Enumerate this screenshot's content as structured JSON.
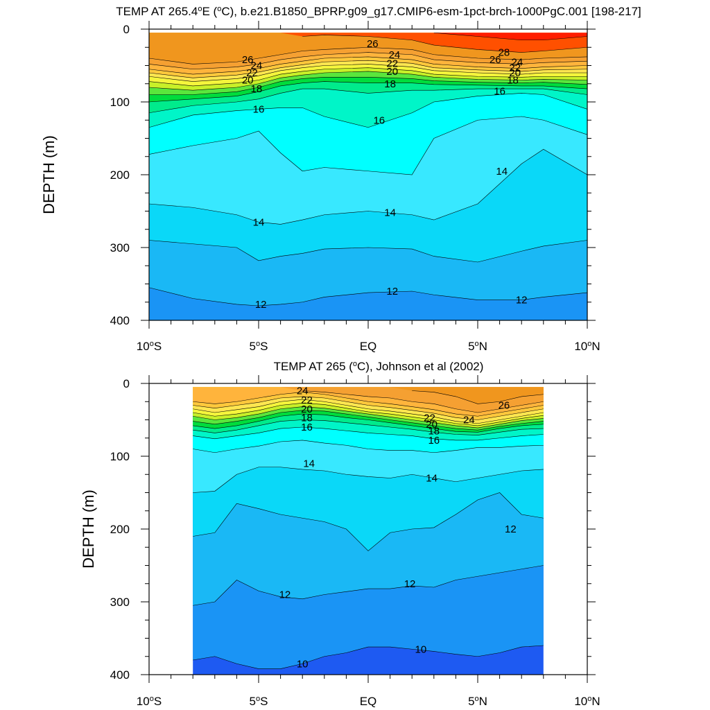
{
  "chart_data": [
    {
      "type": "contour",
      "title_pre": "TEMP AT 265.4",
      "title_sup": "o",
      "title_post": "E (",
      "title_sup2": "o",
      "title_post2": "C), b.e21.B1850_BPRP.g09_g17.CMIP6-esm-1pct-brch-1000PgC.001 [198-217]",
      "ylabel": "DEPTH (m)",
      "ylim": [
        0,
        400
      ],
      "xlim": [
        -10,
        10
      ],
      "xticks": [
        {
          "value": -10,
          "label": "10",
          "suffix": "S",
          "deg": true
        },
        {
          "value": -5,
          "label": "5",
          "suffix": "S",
          "deg": true
        },
        {
          "value": 0,
          "label": "EQ",
          "suffix": "",
          "deg": false
        },
        {
          "value": 5,
          "label": "5",
          "suffix": "N",
          "deg": true
        },
        {
          "value": 10,
          "label": "10",
          "suffix": "N",
          "deg": true
        }
      ],
      "yticks": [
        "0",
        "100",
        "200",
        "300",
        "400"
      ],
      "data_extent": [
        -10,
        10
      ],
      "isotherm_depths": {
        "x": [
          -10,
          -8,
          -6,
          -5,
          -4,
          -3,
          -2,
          0,
          2,
          3,
          5,
          7,
          8,
          10
        ],
        "levels": [
          {
            "t": 28,
            "d": [
              -1,
              -1,
              -1,
              -1,
              -1,
              -1,
              -1,
              -1,
              -1,
              5,
              10,
              15,
              15,
              10
            ]
          },
          {
            "t": 27,
            "d": [
              -1,
              -1,
              -1,
              -1,
              -1,
              10,
              8,
              10,
              15,
              22,
              28,
              32,
              30,
              25
            ]
          },
          {
            "t": 26,
            "d": [
              40,
              48,
              45,
              40,
              35,
              30,
              28,
              25,
              28,
              35,
              40,
              42,
              40,
              38
            ]
          },
          {
            "t": 25,
            "d": [
              48,
              55,
              52,
              48,
              42,
              38,
              35,
              32,
              35,
              42,
              46,
              48,
              46,
              44
            ]
          },
          {
            "t": 24,
            "d": [
              55,
              62,
              58,
              54,
              48,
              44,
              40,
              38,
              42,
              48,
              52,
              54,
              52,
              50
            ]
          },
          {
            "t": 23,
            "d": [
              60,
              67,
              63,
              59,
              53,
              49,
              45,
              43,
              47,
              53,
              56,
              58,
              56,
              55
            ]
          },
          {
            "t": 22,
            "d": [
              65,
              72,
              68,
              64,
              57,
              53,
              50,
              48,
              52,
              57,
              60,
              62,
              60,
              60
            ]
          },
          {
            "t": 21,
            "d": [
              72,
              78,
              74,
              70,
              62,
              58,
              55,
              53,
              57,
              62,
              65,
              66,
              65,
              65
            ]
          },
          {
            "t": 20,
            "d": [
              80,
              84,
              80,
              75,
              67,
              63,
              60,
              58,
              62,
              66,
              69,
              70,
              69,
              70
            ]
          },
          {
            "t": 19,
            "d": [
              90,
              90,
              86,
              80,
              72,
              68,
              66,
              66,
              68,
              71,
              73,
              74,
              73,
              76
            ]
          },
          {
            "t": 18,
            "d": [
              100,
              96,
              92,
              86,
              78,
              74,
              72,
              74,
              74,
              76,
              77,
              78,
              78,
              82
            ]
          },
          {
            "t": 17,
            "d": [
              115,
              105,
              100,
              96,
              88,
              82,
              82,
              88,
              84,
              84,
              82,
              82,
              82,
              90
            ]
          },
          {
            "t": 16,
            "d": [
              135,
              118,
              112,
              110,
              108,
              108,
              120,
              135,
              115,
              100,
              92,
              88,
              90,
              110
            ]
          },
          {
            "t": 15,
            "d": [
              172,
              160,
              150,
              140,
              170,
              195,
              190,
              195,
              200,
              150,
              125,
              120,
              125,
              145
            ]
          },
          {
            "t": 14,
            "d": [
              240,
              245,
              255,
              265,
              268,
              262,
              255,
              250,
              255,
              262,
              240,
              185,
              165,
              200
            ]
          },
          {
            "t": 13,
            "d": [
              290,
              295,
              300,
              318,
              312,
              308,
              302,
              300,
              302,
              312,
              320,
              305,
              298,
              290
            ]
          },
          {
            "t": 12,
            "d": [
              355,
              370,
              378,
              380,
              378,
              375,
              368,
              362,
              360,
              365,
              372,
              372,
              368,
              362
            ]
          }
        ]
      },
      "labels": [
        {
          "text": "26",
          "x": -5.5,
          "d": 42
        },
        {
          "text": "24",
          "x": -5.1,
          "d": 50
        },
        {
          "text": "22",
          "x": -5.3,
          "d": 60
        },
        {
          "text": "20",
          "x": -5.5,
          "d": 70
        },
        {
          "text": "18",
          "x": -5.1,
          "d": 82
        },
        {
          "text": "16",
          "x": -5.0,
          "d": 110
        },
        {
          "text": "26",
          "x": 0.2,
          "d": 20
        },
        {
          "text": "24",
          "x": 1.2,
          "d": 35
        },
        {
          "text": "22",
          "x": 1.1,
          "d": 47
        },
        {
          "text": "20",
          "x": 1.1,
          "d": 58
        },
        {
          "text": "18",
          "x": 1.0,
          "d": 75
        },
        {
          "text": "16",
          "x": 0.5,
          "d": 125
        },
        {
          "text": "28",
          "x": 6.2,
          "d": 32
        },
        {
          "text": "26",
          "x": 5.8,
          "d": 42
        },
        {
          "text": "24",
          "x": 6.8,
          "d": 45
        },
        {
          "text": "22",
          "x": 6.7,
          "d": 53
        },
        {
          "text": "20",
          "x": 6.7,
          "d": 60
        },
        {
          "text": "18",
          "x": 6.6,
          "d": 70
        },
        {
          "text": "16",
          "x": 6.0,
          "d": 85
        },
        {
          "text": "14",
          "x": 6.1,
          "d": 195
        },
        {
          "text": "14",
          "x": -5.0,
          "d": 265
        },
        {
          "text": "14",
          "x": 1.0,
          "d": 252
        },
        {
          "text": "12",
          "x": -4.9,
          "d": 378
        },
        {
          "text": "12",
          "x": 1.1,
          "d": 360
        },
        {
          "text": "12",
          "x": 7.0,
          "d": 372
        }
      ]
    },
    {
      "type": "contour",
      "title_pre": "TEMP AT 265 (",
      "title_sup": "o",
      "title_post": "C), Johnson et al (2002)",
      "title_sup2": "",
      "title_post2": "",
      "ylabel": "DEPTH (m)",
      "ylim": [
        0,
        400
      ],
      "xlim": [
        -10,
        10
      ],
      "xticks": [
        {
          "value": -10,
          "label": "10",
          "suffix": "S",
          "deg": true
        },
        {
          "value": -5,
          "label": "5",
          "suffix": "S",
          "deg": true
        },
        {
          "value": 0,
          "label": "EQ",
          "suffix": "",
          "deg": false
        },
        {
          "value": 5,
          "label": "5",
          "suffix": "N",
          "deg": true
        },
        {
          "value": 10,
          "label": "10",
          "suffix": "N",
          "deg": true
        }
      ],
      "yticks": [
        "0",
        "100",
        "200",
        "300",
        "400"
      ],
      "data_extent": [
        -8,
        8
      ],
      "isotherm_depths": {
        "x": [
          -8,
          -7,
          -6,
          -5,
          -4,
          -3,
          -2,
          -1,
          0,
          1,
          2,
          3,
          4,
          5,
          6,
          7,
          8
        ],
        "levels": [
          {
            "t": 26,
            "d": [
              -1,
              -1,
              -1,
              -1,
              -1,
              -1,
              -1,
              -1,
              -1,
              -1,
              10,
              12,
              18,
              28,
              25,
              18,
              15
            ]
          },
          {
            "t": 25,
            "d": [
              -1,
              -1,
              -1,
              -1,
              -1,
              10,
              12,
              15,
              18,
              20,
              25,
              28,
              35,
              40,
              35,
              30,
              25
            ]
          },
          {
            "t": 24,
            "d": [
              25,
              28,
              25,
              20,
              15,
              12,
              15,
              20,
              25,
              28,
              32,
              36,
              42,
              45,
              40,
              35,
              30
            ]
          },
          {
            "t": 23,
            "d": [
              30,
              34,
              30,
              26,
              20,
              18,
              20,
              25,
              30,
              33,
              37,
              41,
              47,
              50,
              45,
              40,
              35
            ]
          },
          {
            "t": 22,
            "d": [
              35,
              40,
              36,
              32,
              25,
              22,
              25,
              30,
              35,
              38,
              42,
              46,
              52,
              55,
              50,
              45,
              40
            ]
          },
          {
            "t": 21,
            "d": [
              40,
              45,
              42,
              37,
              30,
              27,
              29,
              34,
              39,
              42,
              46,
              50,
              55,
              58,
              53,
              48,
              44
            ]
          },
          {
            "t": 20,
            "d": [
              45,
              50,
              47,
              42,
              35,
              32,
              34,
              38,
              42,
              46,
              50,
              54,
              58,
              61,
              56,
              51,
              48
            ]
          },
          {
            "t": 19,
            "d": [
              52,
              56,
              52,
              47,
              40,
              37,
              38,
              42,
              46,
              50,
              54,
              58,
              62,
              64,
              59,
              55,
              52
            ]
          },
          {
            "t": 18,
            "d": [
              58,
              62,
              58,
              52,
              45,
              42,
              43,
              47,
              50,
              54,
              58,
              62,
              66,
              67,
              62,
              58,
              56
            ]
          },
          {
            "t": 17,
            "d": [
              64,
              68,
              64,
              58,
              52,
              50,
              51,
              54,
              57,
              60,
              63,
              67,
              70,
              71,
              67,
              63,
              62
            ]
          },
          {
            "t": 16,
            "d": [
              72,
              76,
              72,
              68,
              62,
              60,
              62,
              65,
              68,
              70,
              72,
              76,
              78,
              78,
              75,
              72,
              70
            ]
          },
          {
            "t": 15,
            "d": [
              90,
              95,
              90,
              86,
              80,
              78,
              82,
              85,
              90,
              92,
              92,
              95,
              92,
              88,
              88,
              86,
              85
            ]
          },
          {
            "t": 14,
            "d": [
              150,
              148,
              125,
              115,
              115,
              118,
              120,
              125,
              128,
              130,
              125,
              130,
              135,
              130,
              125,
              120,
              118
            ]
          },
          {
            "t": 13,
            "d": [
              210,
              205,
              165,
              172,
              180,
              185,
              190,
              200,
              230,
              205,
              200,
              198,
              180,
              160,
              150,
              180,
              185
            ]
          },
          {
            "t": 12,
            "d": [
              305,
              300,
              270,
              285,
              293,
              296,
              290,
              286,
              282,
              282,
              278,
              280,
              270,
              265,
              260,
              255,
              250
            ]
          },
          {
            "t": 11,
            "d": [
              380,
              375,
              385,
              392,
              392,
              385,
              375,
              370,
              362,
              362,
              365,
              368,
              372,
              375,
              370,
              362,
              360
            ]
          }
        ]
      },
      "labels": [
        {
          "text": "24",
          "x": -3.0,
          "d": 10
        },
        {
          "text": "22",
          "x": -2.8,
          "d": 23
        },
        {
          "text": "20",
          "x": -2.8,
          "d": 35
        },
        {
          "text": "18",
          "x": -2.8,
          "d": 47
        },
        {
          "text": "16",
          "x": -2.8,
          "d": 60
        },
        {
          "text": "14",
          "x": -2.7,
          "d": 110
        },
        {
          "text": "12",
          "x": -3.8,
          "d": 290
        },
        {
          "text": "10",
          "x": -3.0,
          "d": 385
        },
        {
          "text": "22",
          "x": 2.8,
          "d": 47
        },
        {
          "text": "20",
          "x": 2.9,
          "d": 56
        },
        {
          "text": "18",
          "x": 3.0,
          "d": 65
        },
        {
          "text": "16",
          "x": 3.0,
          "d": 78
        },
        {
          "text": "24",
          "x": 4.6,
          "d": 50
        },
        {
          "text": "26",
          "x": 6.2,
          "d": 30
        },
        {
          "text": "14",
          "x": 2.9,
          "d": 130
        },
        {
          "text": "12",
          "x": 1.9,
          "d": 275
        },
        {
          "text": "12",
          "x": 6.5,
          "d": 200
        },
        {
          "text": "10",
          "x": 2.4,
          "d": 365
        }
      ]
    }
  ],
  "palette": {
    "colors": [
      {
        "t": 10,
        "c": "#1e5af2"
      },
      {
        "t": 11,
        "c": "#1a94f5"
      },
      {
        "t": 12,
        "c": "#1ab8f5"
      },
      {
        "t": 13,
        "c": "#0ad8f8"
      },
      {
        "t": 14,
        "c": "#38e8ff"
      },
      {
        "t": 15,
        "c": "#00ffff"
      },
      {
        "t": 16,
        "c": "#00f5c8"
      },
      {
        "t": 17,
        "c": "#00eb8c"
      },
      {
        "t": 18,
        "c": "#00dc3c"
      },
      {
        "t": 19,
        "c": "#5ae63c"
      },
      {
        "t": 20,
        "c": "#c8f028"
      },
      {
        "t": 21,
        "c": "#f5f53c"
      },
      {
        "t": 22,
        "c": "#ffe650"
      },
      {
        "t": 23,
        "c": "#ffc83c"
      },
      {
        "t": 24,
        "c": "#ffb43c"
      },
      {
        "t": 25,
        "c": "#f5a032"
      },
      {
        "t": 26,
        "c": "#f0961e"
      },
      {
        "t": 27,
        "c": "#ff5000"
      },
      {
        "t": 28,
        "c": "#ff1e00"
      },
      {
        "t": 29,
        "c": "#e60000"
      }
    ]
  }
}
